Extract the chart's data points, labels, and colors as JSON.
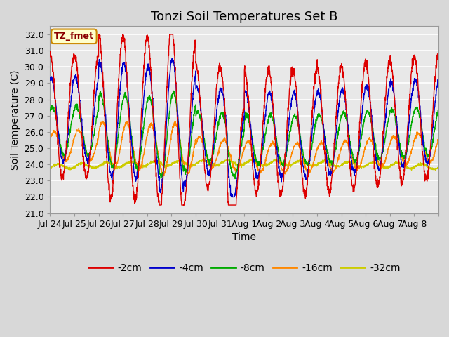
{
  "title": "Tonzi Soil Temperatures Set B",
  "xlabel": "Time",
  "ylabel": "Soil Temperature (C)",
  "ylim": [
    21.0,
    32.5
  ],
  "yticks": [
    21.0,
    22.0,
    23.0,
    24.0,
    25.0,
    26.0,
    27.0,
    28.0,
    29.0,
    30.0,
    31.0,
    32.0
  ],
  "xtick_labels": [
    "Jul 24",
    "Jul 25",
    "Jul 26",
    "Jul 27",
    "Jul 28",
    "Jul 29",
    "Jul 30",
    "Jul 31",
    "Aug 1",
    "Aug 2",
    "Aug 3",
    "Aug 4",
    "Aug 5",
    "Aug 6",
    "Aug 7",
    "Aug 8"
  ],
  "legend_labels": [
    "-2cm",
    "-4cm",
    "-8cm",
    "-16cm",
    "-32cm"
  ],
  "legend_colors": [
    "#dd0000",
    "#0000cc",
    "#00aa00",
    "#ff8800",
    "#cccc00"
  ],
  "annotation_text": "TZ_fmet",
  "annotation_bg": "#ffffcc",
  "annotation_border": "#cc8800",
  "plot_bg": "#e8e8e8",
  "fig_bg": "#d8d8d8",
  "grid_color": "#ffffff",
  "title_fontsize": 13,
  "label_fontsize": 10,
  "tick_fontsize": 9
}
